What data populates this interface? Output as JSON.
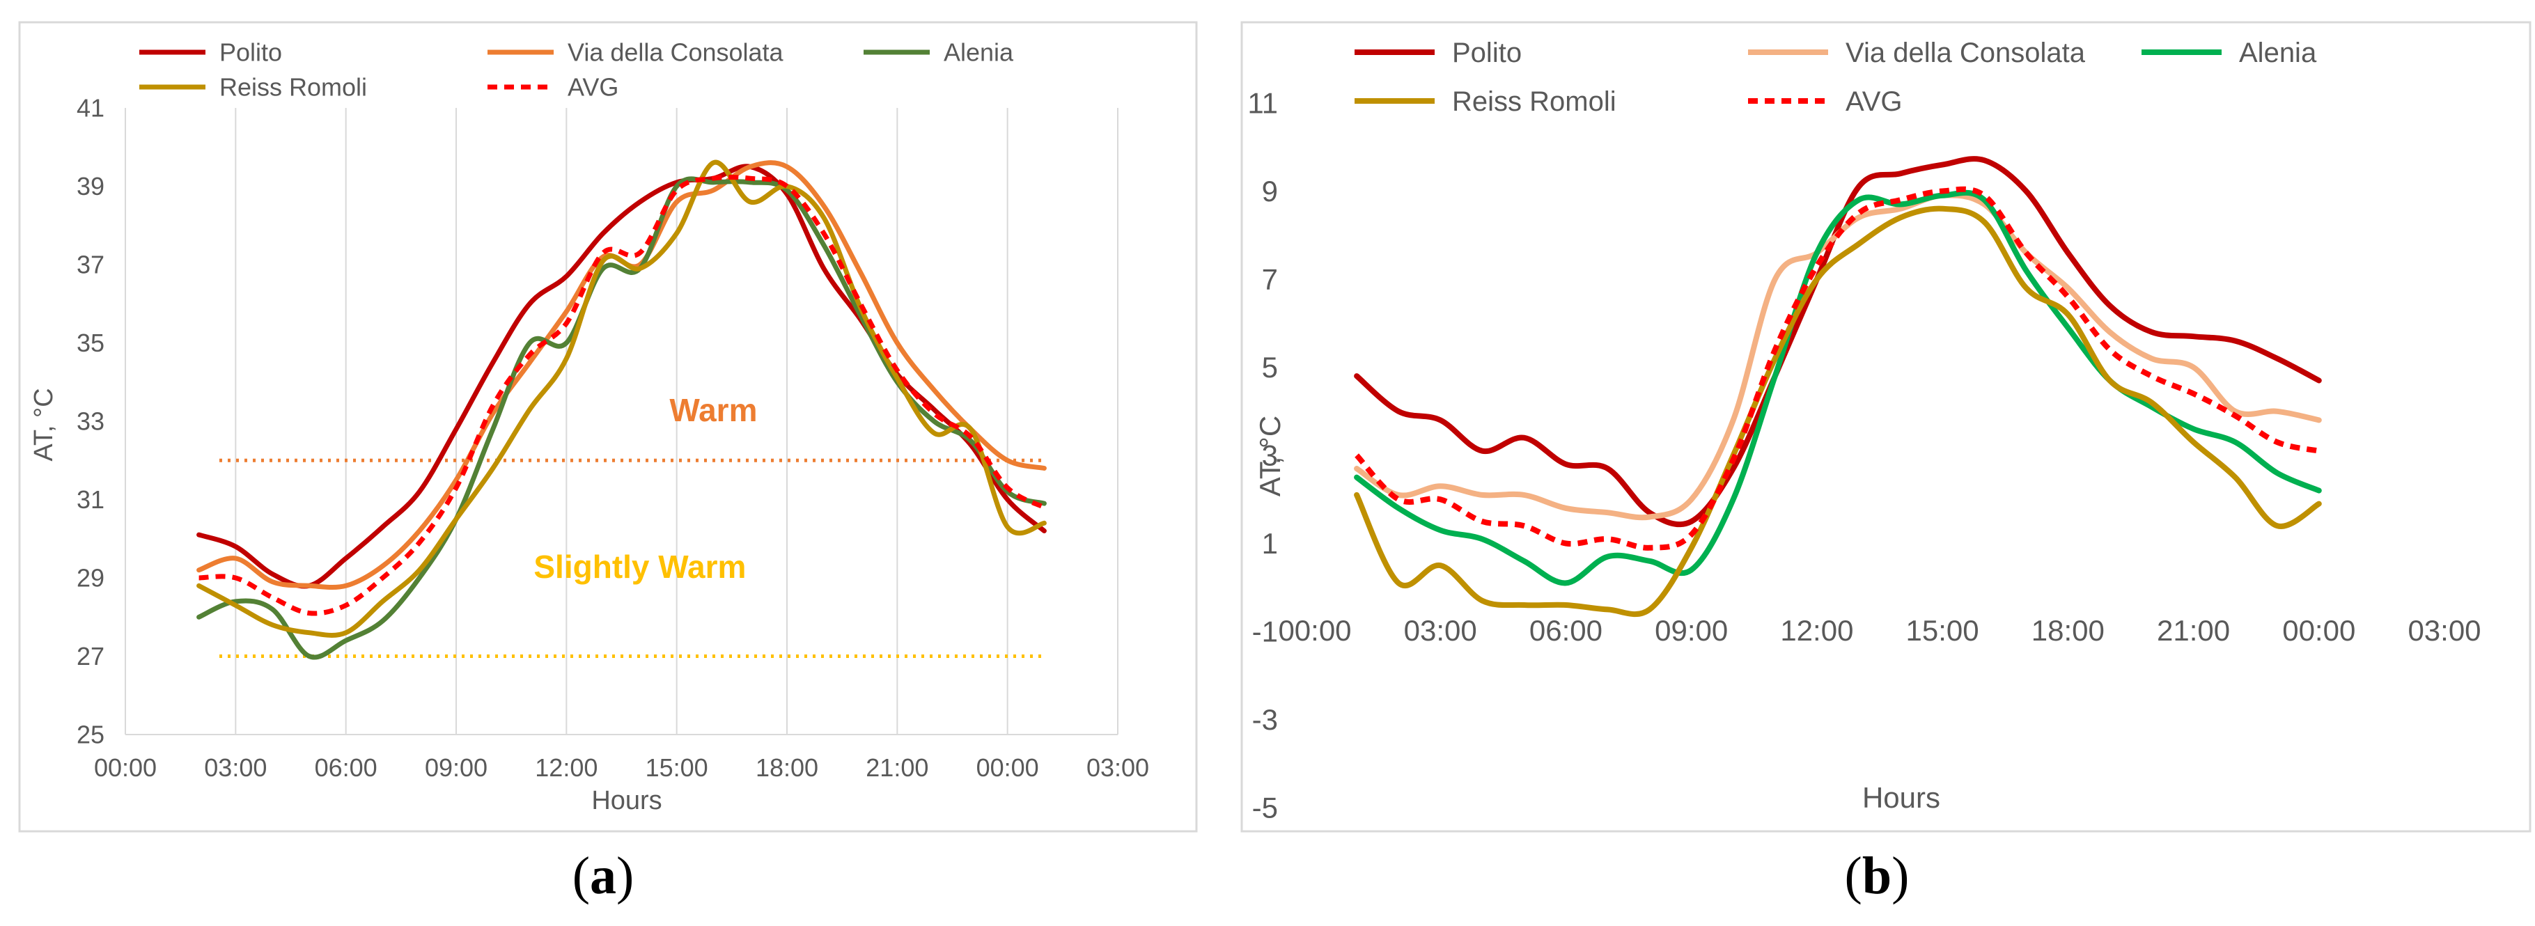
{
  "chart_data": [
    {
      "type": "line",
      "panel_label_open": "(",
      "panel_label_letter": "a",
      "panel_label_close": ")",
      "xlabel": "Hours",
      "ylabel": "AT, °C",
      "xlim": [
        0,
        27
      ],
      "ylim": [
        25,
        41
      ],
      "xticks": [
        0,
        3,
        6,
        9,
        12,
        15,
        18,
        21,
        24,
        27
      ],
      "xtick_labels": [
        "00:00",
        "03:00",
        "06:00",
        "09:00",
        "12:00",
        "15:00",
        "18:00",
        "21:00",
        "00:00",
        "03:00"
      ],
      "yticks": [
        25,
        27,
        29,
        31,
        33,
        35,
        37,
        39,
        41
      ],
      "ytick_labels": [
        "25",
        "27",
        "29",
        "31",
        "33",
        "35",
        "37",
        "39",
        "41"
      ],
      "grid": "vertical",
      "legend_placement": "top",
      "series": [
        {
          "name": "Polito",
          "color": "#C00000",
          "dashed": false,
          "x": [
            2,
            3,
            4,
            5,
            6,
            7,
            8,
            9,
            10,
            11,
            12,
            13,
            14,
            15,
            16,
            17,
            18,
            19,
            20,
            21,
            22,
            23,
            24,
            25
          ],
          "y": [
            30.1,
            29.8,
            29.1,
            28.8,
            29.5,
            30.3,
            31.2,
            32.8,
            34.5,
            36.0,
            36.7,
            37.8,
            38.6,
            39.1,
            39.2,
            39.5,
            38.8,
            36.9,
            35.6,
            34.2,
            33.3,
            32.4,
            31.0,
            30.2
          ]
        },
        {
          "name": "Via della Consolata",
          "color": "#ED7D31",
          "dashed": false,
          "x": [
            2,
            3,
            4,
            5,
            6,
            7,
            8,
            9,
            10,
            11,
            12,
            13,
            14,
            15,
            16,
            17,
            18,
            19,
            20,
            21,
            22,
            23,
            24,
            25
          ],
          "y": [
            29.2,
            29.5,
            28.9,
            28.8,
            28.8,
            29.3,
            30.2,
            31.5,
            33.2,
            34.5,
            35.8,
            37.2,
            37.0,
            38.6,
            38.9,
            39.5,
            39.5,
            38.5,
            36.8,
            35.0,
            33.8,
            32.8,
            32.0,
            31.8
          ]
        },
        {
          "name": "Alenia",
          "color": "#538135",
          "dashed": false,
          "x": [
            2,
            3,
            4,
            5,
            6,
            7,
            8,
            9,
            10,
            11,
            12,
            13,
            14,
            15,
            16,
            17,
            18,
            19,
            20,
            21,
            22,
            23,
            24,
            25
          ],
          "y": [
            28.0,
            28.4,
            28.2,
            27.0,
            27.4,
            27.9,
            29.0,
            30.5,
            32.8,
            35.0,
            35.0,
            36.9,
            36.9,
            39.0,
            39.1,
            39.1,
            38.9,
            37.5,
            35.7,
            34.0,
            33.0,
            32.5,
            31.2,
            30.9
          ]
        },
        {
          "name": "Reiss Romoli",
          "color": "#BF9000",
          "dashed": false,
          "x": [
            2,
            3,
            4,
            5,
            6,
            7,
            8,
            9,
            10,
            11,
            12,
            13,
            14,
            15,
            16,
            17,
            18,
            19,
            20,
            21,
            22,
            23,
            24,
            25
          ],
          "y": [
            28.8,
            28.3,
            27.8,
            27.6,
            27.6,
            28.4,
            29.2,
            30.5,
            31.8,
            33.3,
            34.6,
            37.1,
            36.9,
            37.8,
            39.6,
            38.6,
            39.0,
            38.2,
            35.9,
            34.1,
            32.7,
            32.8,
            30.3,
            30.4
          ]
        },
        {
          "name": "AVG",
          "color": "#FF0000",
          "dashed": true,
          "x": [
            2,
            3,
            4,
            5,
            6,
            7,
            8,
            9,
            10,
            11,
            12,
            13,
            14,
            15,
            16,
            17,
            18,
            19,
            20,
            21,
            22,
            23,
            24,
            25
          ],
          "y": [
            29.0,
            29.0,
            28.5,
            28.1,
            28.3,
            29.0,
            29.9,
            31.3,
            33.4,
            34.7,
            35.5,
            37.3,
            37.3,
            38.9,
            39.2,
            39.2,
            39.0,
            37.8,
            36.0,
            34.3,
            33.2,
            32.6,
            31.3,
            30.8
          ]
        }
      ],
      "reference_lines": [
        {
          "label": "Warm",
          "y": 32,
          "color": "#ED7D31",
          "label_x": 16,
          "label_y": 33.0
        },
        {
          "label": "Slightly Warm",
          "y": 27,
          "color": "#FFC000",
          "label_x": 14,
          "label_y": 29.0
        }
      ]
    },
    {
      "type": "line",
      "panel_label_open": "(",
      "panel_label_letter": "b",
      "panel_label_close": ")",
      "xlabel": "Hours",
      "ylabel": "AT, °C",
      "xlim": [
        0,
        27
      ],
      "ylim": [
        -5,
        11
      ],
      "xticks": [
        0,
        3,
        6,
        9,
        12,
        15,
        18,
        21,
        24,
        27
      ],
      "xtick_labels": [
        "00:00",
        "03:00",
        "06:00",
        "09:00",
        "12:00",
        "15:00",
        "18:00",
        "21:00",
        "00:00",
        "03:00"
      ],
      "yticks": [
        -5,
        -3,
        -1,
        1,
        3,
        5,
        7,
        9,
        11
      ],
      "ytick_labels": [
        "-5",
        "-3",
        "-1",
        "1",
        "3",
        "5",
        "7",
        "9",
        "11"
      ],
      "grid": "none",
      "legend_placement": "top",
      "series": [
        {
          "name": "Polito",
          "color": "#C00000",
          "dashed": false,
          "x": [
            1,
            2,
            3,
            4,
            5,
            6,
            7,
            8,
            9,
            10,
            11,
            12,
            13,
            14,
            15,
            16,
            17,
            18,
            19,
            20,
            21,
            22,
            23,
            24
          ],
          "y": [
            4.8,
            4.0,
            3.8,
            3.1,
            3.4,
            2.8,
            2.7,
            1.7,
            1.5,
            2.7,
            4.8,
            7.0,
            9.1,
            9.4,
            9.6,
            9.7,
            9.0,
            7.6,
            6.4,
            5.8,
            5.7,
            5.6,
            5.2,
            4.7
          ]
        },
        {
          "name": "Via della Consolata",
          "color": "#F4B183",
          "dashed": false,
          "x": [
            1,
            2,
            3,
            4,
            5,
            6,
            7,
            8,
            9,
            10,
            11,
            12,
            13,
            14,
            15,
            16,
            17,
            18,
            19,
            20,
            21,
            22,
            23,
            24
          ],
          "y": [
            2.7,
            2.1,
            2.3,
            2.1,
            2.1,
            1.8,
            1.7,
            1.6,
            2.0,
            3.8,
            7.0,
            7.6,
            8.4,
            8.6,
            8.9,
            8.7,
            7.6,
            6.8,
            5.8,
            5.2,
            5.0,
            4.0,
            4.0,
            3.8
          ]
        },
        {
          "name": "Alenia",
          "color": "#00B050",
          "dashed": false,
          "x": [
            1,
            2,
            3,
            4,
            5,
            6,
            7,
            8,
            9,
            10,
            11,
            12,
            13,
            14,
            15,
            16,
            17,
            18,
            19,
            20,
            21,
            22,
            23,
            24
          ],
          "y": [
            2.5,
            1.8,
            1.3,
            1.1,
            0.6,
            0.1,
            0.7,
            0.6,
            0.4,
            2.0,
            4.8,
            7.6,
            8.8,
            8.7,
            8.9,
            8.8,
            7.2,
            5.9,
            4.7,
            4.1,
            3.6,
            3.3,
            2.6,
            2.2
          ]
        },
        {
          "name": "Reiss Romoli",
          "color": "#BF9000",
          "dashed": false,
          "x": [
            1,
            2,
            3,
            4,
            5,
            6,
            7,
            8,
            9,
            10,
            11,
            12,
            13,
            14,
            15,
            16,
            17,
            18,
            19,
            20,
            21,
            22,
            23,
            24
          ],
          "y": [
            2.1,
            0.1,
            0.5,
            -0.3,
            -0.4,
            -0.4,
            -0.5,
            -0.5,
            0.9,
            3.0,
            5.2,
            7.0,
            7.8,
            8.4,
            8.6,
            8.3,
            6.8,
            6.2,
            4.7,
            4.2,
            3.3,
            2.5,
            1.4,
            1.9
          ]
        },
        {
          "name": "AVG",
          "color": "#FF0000",
          "dashed": true,
          "x": [
            1,
            2,
            3,
            4,
            5,
            6,
            7,
            8,
            9,
            10,
            11,
            12,
            13,
            14,
            15,
            16,
            17,
            18,
            19,
            20,
            21,
            22,
            23,
            24
          ],
          "y": [
            3.0,
            2.0,
            2.0,
            1.5,
            1.4,
            1.0,
            1.1,
            0.9,
            1.2,
            2.9,
            5.4,
            7.3,
            8.5,
            8.8,
            9.0,
            8.9,
            7.6,
            6.6,
            5.4,
            4.8,
            4.4,
            3.9,
            3.3,
            3.1
          ]
        }
      ],
      "reference_lines": []
    }
  ]
}
